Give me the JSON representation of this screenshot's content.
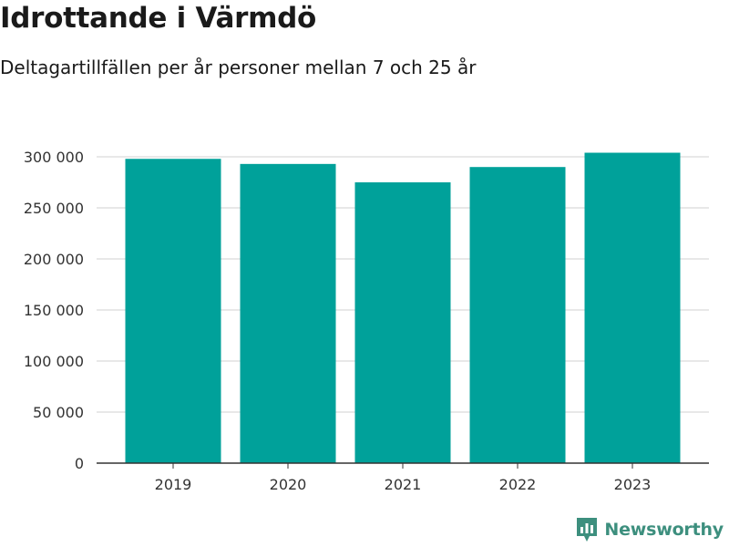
{
  "title": "Idrottande i Värmdö",
  "subtitle": "Deltagartillfällen per år personer mellan 7 och 25 år",
  "brand": {
    "name": "Newsworthy",
    "color": "#3d8f7e",
    "icon": "newsworthy-chart-icon"
  },
  "colors": {
    "bar": "#00a19a",
    "grid": "#e0e0e0",
    "axis": "#333333"
  },
  "chart_data": {
    "type": "bar",
    "categories": [
      "2019",
      "2020",
      "2021",
      "2022",
      "2023"
    ],
    "values": [
      298000,
      293000,
      275000,
      290000,
      304000
    ],
    "title": "Idrottande i Värmdö",
    "subtitle": "Deltagartillfällen per år personer mellan 7 och 25 år",
    "xlabel": "",
    "ylabel": "",
    "ylim": [
      0,
      300000
    ],
    "yticks": [
      0,
      50000,
      100000,
      150000,
      200000,
      250000,
      300000
    ],
    "ytick_labels": [
      "0",
      "50 000",
      "100 000",
      "150 000",
      "200 000",
      "250 000",
      "300 000"
    ],
    "grid": true,
    "legend": "none"
  }
}
